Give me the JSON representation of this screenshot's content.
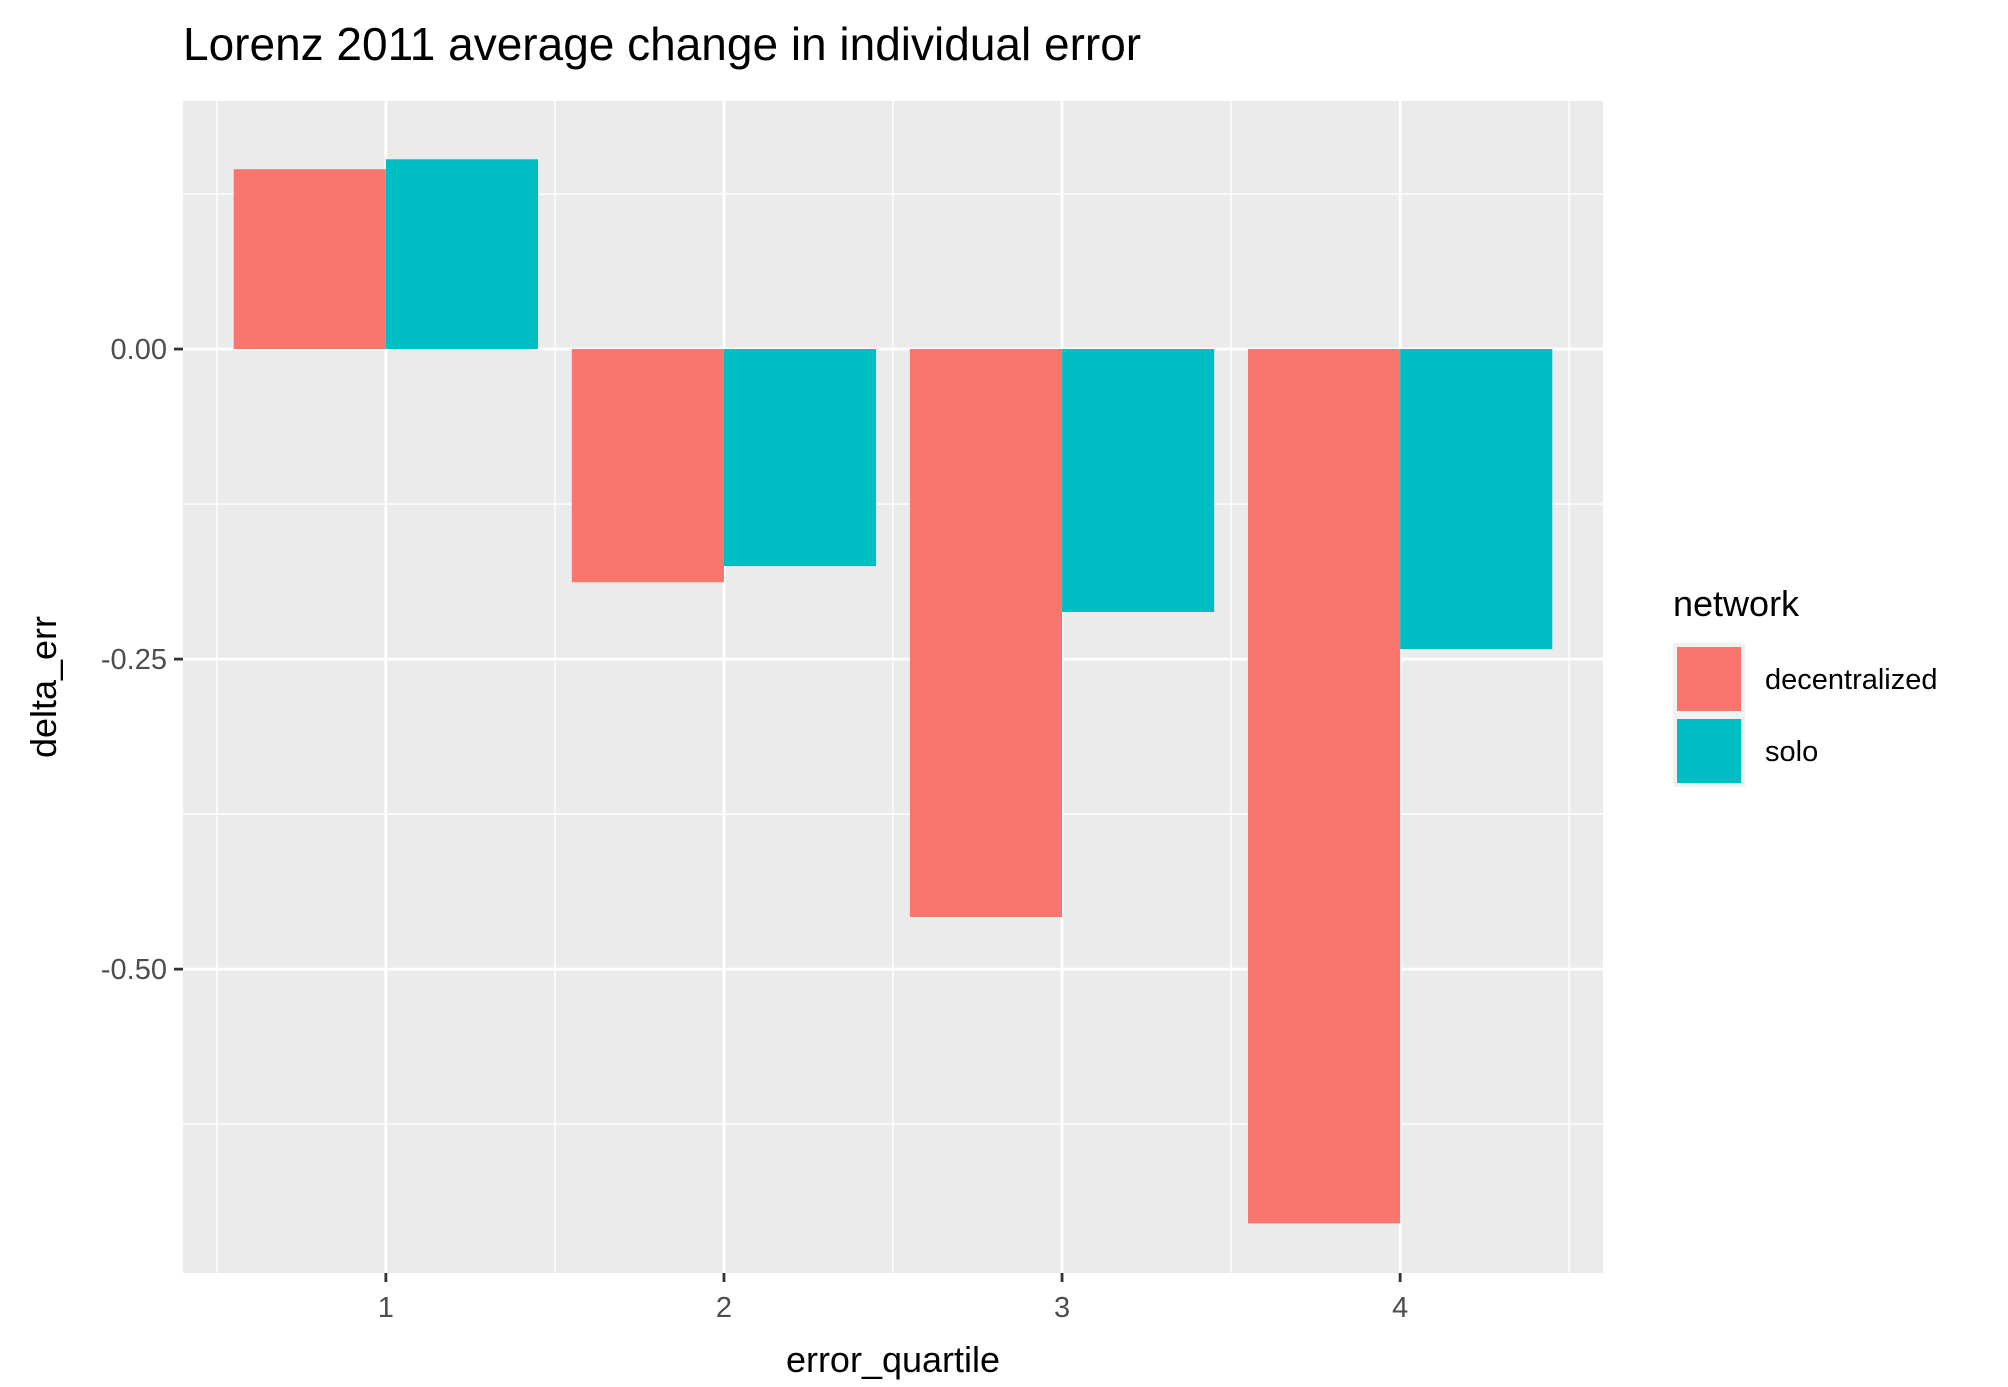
{
  "chart_data": {
    "type": "bar",
    "title": "Lorenz 2011 average change in individual error",
    "xlabel": "error_quartile",
    "ylabel": "delta_err",
    "categories": [
      "1",
      "2",
      "3",
      "4"
    ],
    "series": [
      {
        "name": "decentralized",
        "color": "#F8766D",
        "values": [
          0.145,
          -0.188,
          -0.458,
          -0.705
        ]
      },
      {
        "name": "solo",
        "color": "#00BFC4",
        "values": [
          0.153,
          -0.175,
          -0.212,
          -0.242
        ]
      }
    ],
    "ylim": [
      -0.745,
      0.2
    ],
    "yticks": [
      0.0,
      -0.25,
      -0.5
    ],
    "ytick_labels": [
      "0.00",
      "-0.25",
      "-0.50"
    ],
    "legend": {
      "title": "network",
      "position": "right"
    },
    "grid": true,
    "panel_background": "#EBEBEB"
  }
}
